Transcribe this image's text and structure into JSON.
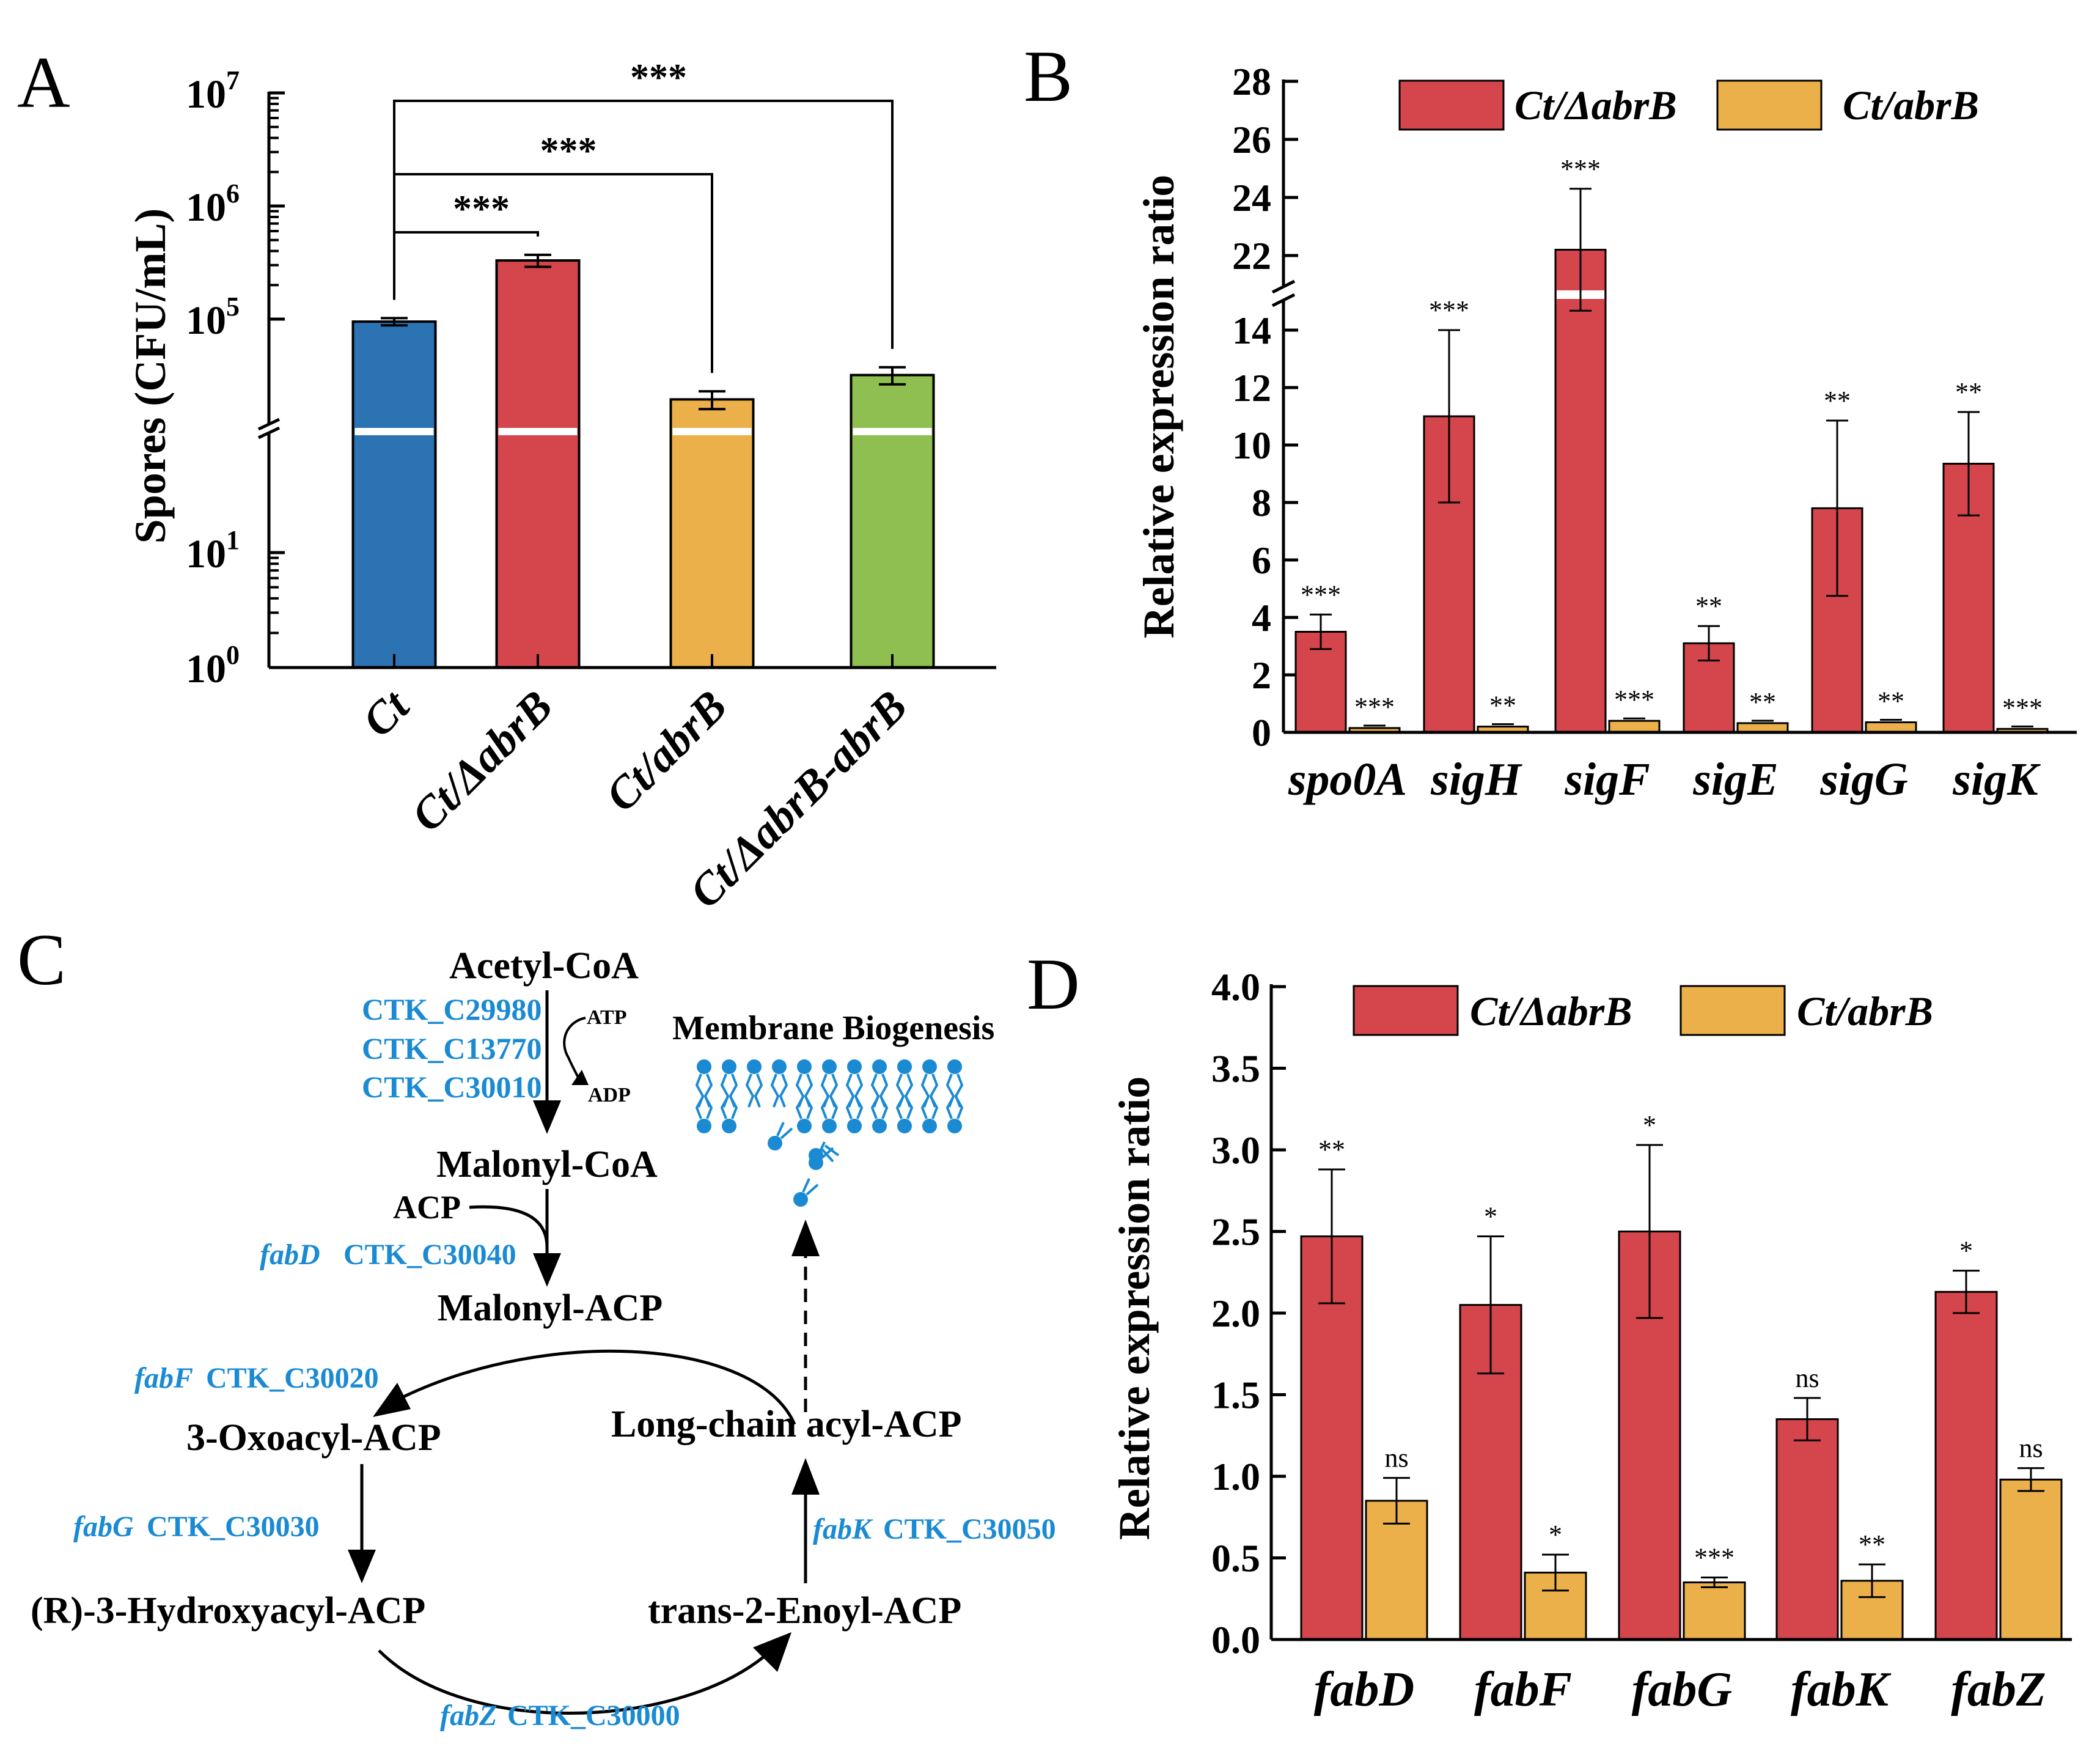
{
  "panels": {
    "A": {
      "letter": "A"
    },
    "B": {
      "letter": "B"
    },
    "C": {
      "letter": "C"
    },
    "D": {
      "letter": "D"
    }
  },
  "colors": {
    "ct": "#2c73b4",
    "deletion": "#d4464b",
    "overexpression": "#ecb04a",
    "complement": "#8fbf50",
    "pathway_blue": "#1a8ad3"
  },
  "chart_data": [
    {
      "id": "A",
      "type": "bar",
      "scale": "log (broken axis)",
      "ylabel": "Spores (CFU/mL)",
      "categories": [
        "Ct",
        "Ct/ΔabrB",
        "Ct/abrB",
        "Ct/ΔabrB-abrB"
      ],
      "values": [
        95000,
        330000,
        19500,
        32000
      ],
      "errors": [
        7000,
        40000,
        3500,
        5500
      ],
      "bar_colors": [
        "#2c73b4",
        "#d4464b",
        "#ecb04a",
        "#8fbf50"
      ],
      "yticks": [
        {
          "base": "10",
          "exp": "0"
        },
        {
          "base": "10",
          "exp": "1"
        },
        {
          "base": "10",
          "exp": "5"
        },
        {
          "base": "10",
          "exp": "6"
        },
        {
          "base": "10",
          "exp": "7"
        }
      ],
      "significance": [
        {
          "from": "Ct",
          "to": "Ct/ΔabrB",
          "label": "***"
        },
        {
          "from": "Ct",
          "to": "Ct/abrB",
          "label": "***"
        },
        {
          "from": "Ct",
          "to": "Ct/ΔabrB-abrB",
          "label": "***"
        }
      ]
    },
    {
      "id": "B",
      "type": "bar",
      "ylabel": "Relative expression ratio",
      "categories": [
        "spo0A",
        "sigH",
        "sigF",
        "sigE",
        "sigG",
        "sigK"
      ],
      "series": [
        {
          "name": "Ct/ΔabrB",
          "values": [
            3.5,
            11.0,
            22.2,
            3.1,
            7.8,
            9.35
          ],
          "errors": [
            0.6,
            3.0,
            2.1,
            0.6,
            3.05,
            1.8
          ],
          "sig": [
            "***",
            "***",
            "***",
            "**",
            "**",
            "**"
          ]
        },
        {
          "name": "Ct/abrB",
          "values": [
            0.15,
            0.2,
            0.4,
            0.32,
            0.35,
            0.12
          ],
          "errors": [
            0,
            0,
            0,
            0,
            0,
            0
          ],
          "sig": [
            "***",
            "**",
            "***",
            "**",
            "**",
            "***"
          ]
        }
      ],
      "ylim_lower": [
        0,
        14
      ],
      "ylim_upper": [
        22,
        28
      ],
      "yticks_lower": [
        "0",
        "2",
        "4",
        "6",
        "8",
        "10",
        "12",
        "14"
      ],
      "yticks_upper": [
        "22",
        "24",
        "26",
        "28"
      ],
      "legend": "top"
    },
    {
      "id": "D",
      "type": "bar",
      "ylabel": "Relative expression ratio",
      "categories": [
        "fabD",
        "fabF",
        "fabG",
        "fabK",
        "fabZ"
      ],
      "series": [
        {
          "name": "Ct/ΔabrB",
          "values": [
            2.47,
            2.05,
            2.5,
            1.35,
            2.13
          ],
          "errors": [
            0.41,
            0.42,
            0.53,
            0.13,
            0.13
          ],
          "sig": [
            "**",
            "*",
            "*",
            "ns",
            "*"
          ]
        },
        {
          "name": "Ct/abrB",
          "values": [
            0.85,
            0.41,
            0.35,
            0.36,
            0.98
          ],
          "errors": [
            0.14,
            0.11,
            0.03,
            0.1,
            0.07
          ],
          "sig": [
            "ns",
            "*",
            "***",
            "**",
            "ns"
          ]
        }
      ],
      "ylim": [
        0,
        4.0
      ],
      "yticks": [
        "0.0",
        "0.5",
        "1.0",
        "1.5",
        "2.0",
        "2.5",
        "3.0",
        "3.5",
        "4.0"
      ],
      "legend": "top"
    }
  ],
  "pathway": {
    "acetyl_coa": "Acetyl-CoA",
    "enzymes1": [
      "CTK_C29980",
      "CTK_C13770",
      "CTK_C30010"
    ],
    "atp": "ATP",
    "adp": "ADP",
    "malonyl_coa": "Malonyl-CoA",
    "acp": "ACP",
    "fabd_gene": "fabD",
    "fabd_id": "CTK_C30040",
    "malonyl_acp": "Malonyl-ACP",
    "fabf_gene": "fabF",
    "fabf_id": "CTK_C30020",
    "oxoacyl": "3-Oxoacyl-ACP",
    "fabg_gene": "fabG",
    "fabg_id": "CTK_C30030",
    "hydroxyacyl": "(R)-3-Hydroxyacyl-ACP",
    "fabz_gene": "fabZ",
    "fabz_id": "CTK_C30000",
    "enoyl": "trans-2-Enoyl-ACP",
    "fabk_gene": "fabK",
    "fabk_id": "CTK_C30050",
    "long_chain": "Long-chain acyl-ACP",
    "membrane": "Membrane Biogenesis"
  }
}
